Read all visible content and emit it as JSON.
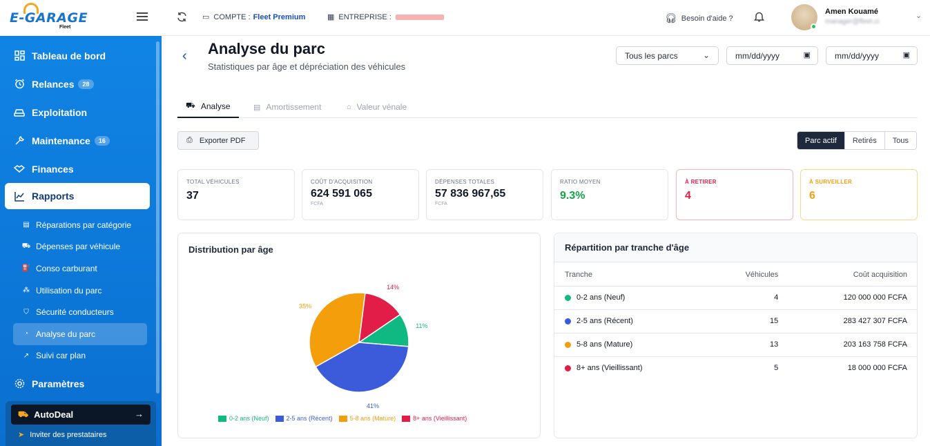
{
  "app": {
    "logo": "E-GARAGE",
    "logo_sub": "Fleet"
  },
  "topbar": {
    "compte_label": "COMPTE :",
    "compte_value": "Fleet Premium",
    "entreprise_label": "ENTREPRISE :",
    "help": "Besoin d'aide ?",
    "user_name": "Amen Kouamé",
    "user_email": "manager@fleet.ci"
  },
  "sidebar": {
    "items": [
      {
        "label": "Tableau de bord"
      },
      {
        "label": "Relances",
        "badge": "28"
      },
      {
        "label": "Exploitation"
      },
      {
        "label": "Maintenance",
        "badge": "16"
      },
      {
        "label": "Finances"
      },
      {
        "label": "Rapports"
      }
    ],
    "sub_items": [
      {
        "label": "Réparations par catégorie"
      },
      {
        "label": "Dépenses par véhicule"
      },
      {
        "label": "Conso carburant"
      },
      {
        "label": "Utilisation du parc"
      },
      {
        "label": "Sécurité conducteurs"
      },
      {
        "label": "Analyse du parc"
      },
      {
        "label": "Suivi car plan"
      }
    ],
    "settings": "Paramètres",
    "autodeal": "AutoDeal",
    "invite": "Inviter des prestataires"
  },
  "page": {
    "title": "Analyse du parc",
    "subtitle": "Statistiques par âge et dépréciation des véhicules",
    "filter_parc": "Tous les parcs",
    "date_placeholder": "mm/dd/yyyy"
  },
  "tabs": [
    {
      "label": "Analyse"
    },
    {
      "label": "Amortissement"
    },
    {
      "label": "Valeur vénale"
    }
  ],
  "toolbar": {
    "export": "Exporter PDF",
    "segments": [
      "Parc actif",
      "Retirés",
      "Tous"
    ]
  },
  "kpis": [
    {
      "label": "TOTAL VÉHICULES",
      "value": "37",
      "unit": "",
      "color": "#111827"
    },
    {
      "label": "COÛT D'ACQUISITION",
      "value": "624 591 065",
      "unit": "FCFA",
      "color": "#111827"
    },
    {
      "label": "DÉPENSES TOTALES",
      "value": "57 836 967,65",
      "unit": "FCFA",
      "color": "#111827"
    },
    {
      "label": "RATIO MOYEN",
      "value": "9.3%",
      "unit": "",
      "color": "#16a34a"
    },
    {
      "label": "À RETIRER",
      "value": "4",
      "unit": "",
      "color": "#e11d48"
    },
    {
      "label": "À SURVEILLER",
      "value": "6",
      "unit": "",
      "color": "#f59e0b"
    }
  ],
  "distribution": {
    "title": "Distribution par âge"
  },
  "chart_data": {
    "type": "pie",
    "categories": [
      "0-2 ans (Neuf)",
      "2-5 ans (Récent)",
      "5-8 ans (Mature)",
      "8+ ans (Vieillissant)"
    ],
    "values": [
      4,
      15,
      13,
      5
    ],
    "percent_labels": [
      "11%",
      "41%",
      "35%",
      "14%"
    ],
    "colors": [
      "#10b981",
      "#3b5bdb",
      "#f59e0b",
      "#e11d48"
    ],
    "title": "Distribution par âge",
    "legend": "bottom"
  },
  "repartition": {
    "title": "Répartition par tranche d'âge",
    "headers": [
      "Tranche",
      "Véhicules",
      "Coût acquisition"
    ],
    "rows": [
      {
        "tranche": "0-2 ans (Neuf)",
        "vehicules": "4",
        "cout": "120 000 000 FCFA",
        "color": "#10b981"
      },
      {
        "tranche": "2-5 ans (Récent)",
        "vehicules": "15",
        "cout": "283 427 307 FCFA",
        "color": "#3b5bdb"
      },
      {
        "tranche": "5-8 ans (Mature)",
        "vehicules": "13",
        "cout": "203 163 758 FCFA",
        "color": "#f59e0b"
      },
      {
        "tranche": "8+ ans (Vieillissant)",
        "vehicules": "5",
        "cout": "18 000 000 FCFA",
        "color": "#e11d48"
      }
    ]
  }
}
